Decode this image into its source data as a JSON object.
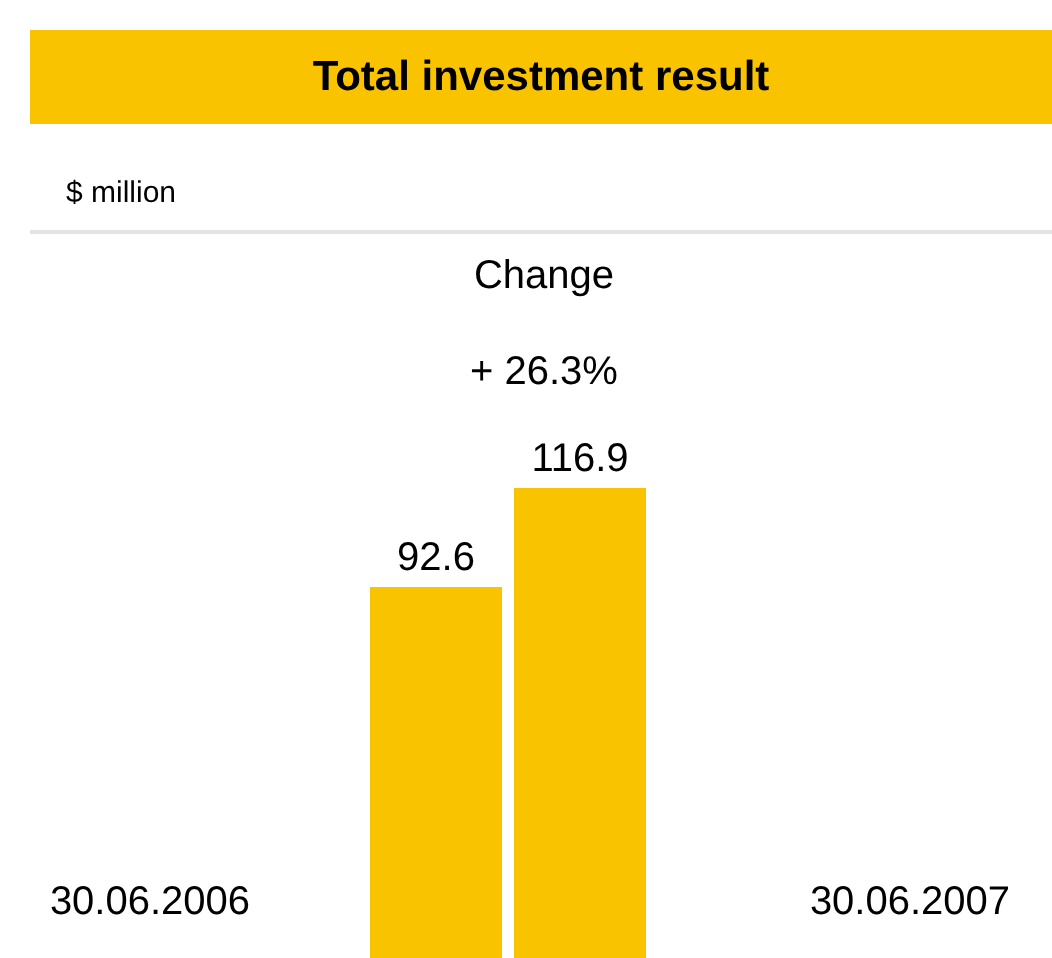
{
  "chart_data": {
    "type": "bar",
    "title": "Total investment result",
    "subtitle": "$ million",
    "categories": [
      "30.06.2006",
      "30.06.2007"
    ],
    "values": [
      92.6,
      116.9
    ],
    "color": "#f9c300",
    "data_labels": true,
    "annotations": [
      "Change",
      "+ 26.3%"
    ]
  }
}
